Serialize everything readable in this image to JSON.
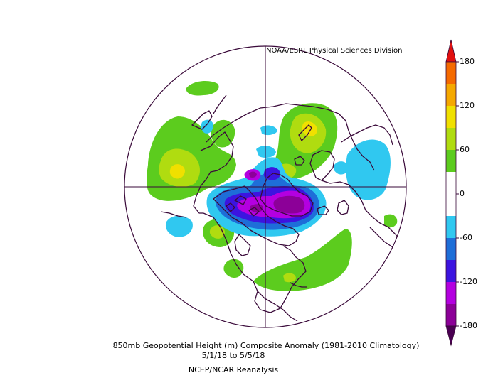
{
  "map": {
    "credit": "NOAA/ESRL Physical Sciences Division",
    "title": "850mb Geopotential Height (m) Composite Anomaly (1981-2010 Climatology)",
    "date_range": "5/1/18  to 5/5/18",
    "source": "NCEP/NCAR Reanalysis"
  },
  "colorbar": {
    "ticks": [
      "180",
      "120",
      "60",
      "0",
      "-60",
      "-120",
      "-180"
    ],
    "colors": {
      "gt180": "#e01010",
      "b150_180": "#f56a00",
      "b120_150": "#f5a800",
      "b90_120": "#f0e000",
      "b60_90": "#b0dc10",
      "b30_60": "#5ccc1e",
      "b0_30": "#ffffff",
      "bm30_0": "#ffffff",
      "bm60_m30": "#30c8f0",
      "bm90_m60": "#1e6ed8",
      "bm120_m90": "#3c14e0",
      "bm150_m120": "#b400e0",
      "bm180_m150": "#8c0098",
      "ltm180": "#4a0052"
    }
  },
  "colors": {
    "coast": "#3a0a3a",
    "grid": "#3a0a3a",
    "green": "#5ccc1e",
    "lime": "#b0dc10",
    "yellow": "#f0e000",
    "cyan": "#30c8f0",
    "blue": "#1e6ed8",
    "indigo": "#3c14e0",
    "magenta": "#b400e0",
    "purple": "#8c0098",
    "darkpurple": "#4a0052"
  }
}
